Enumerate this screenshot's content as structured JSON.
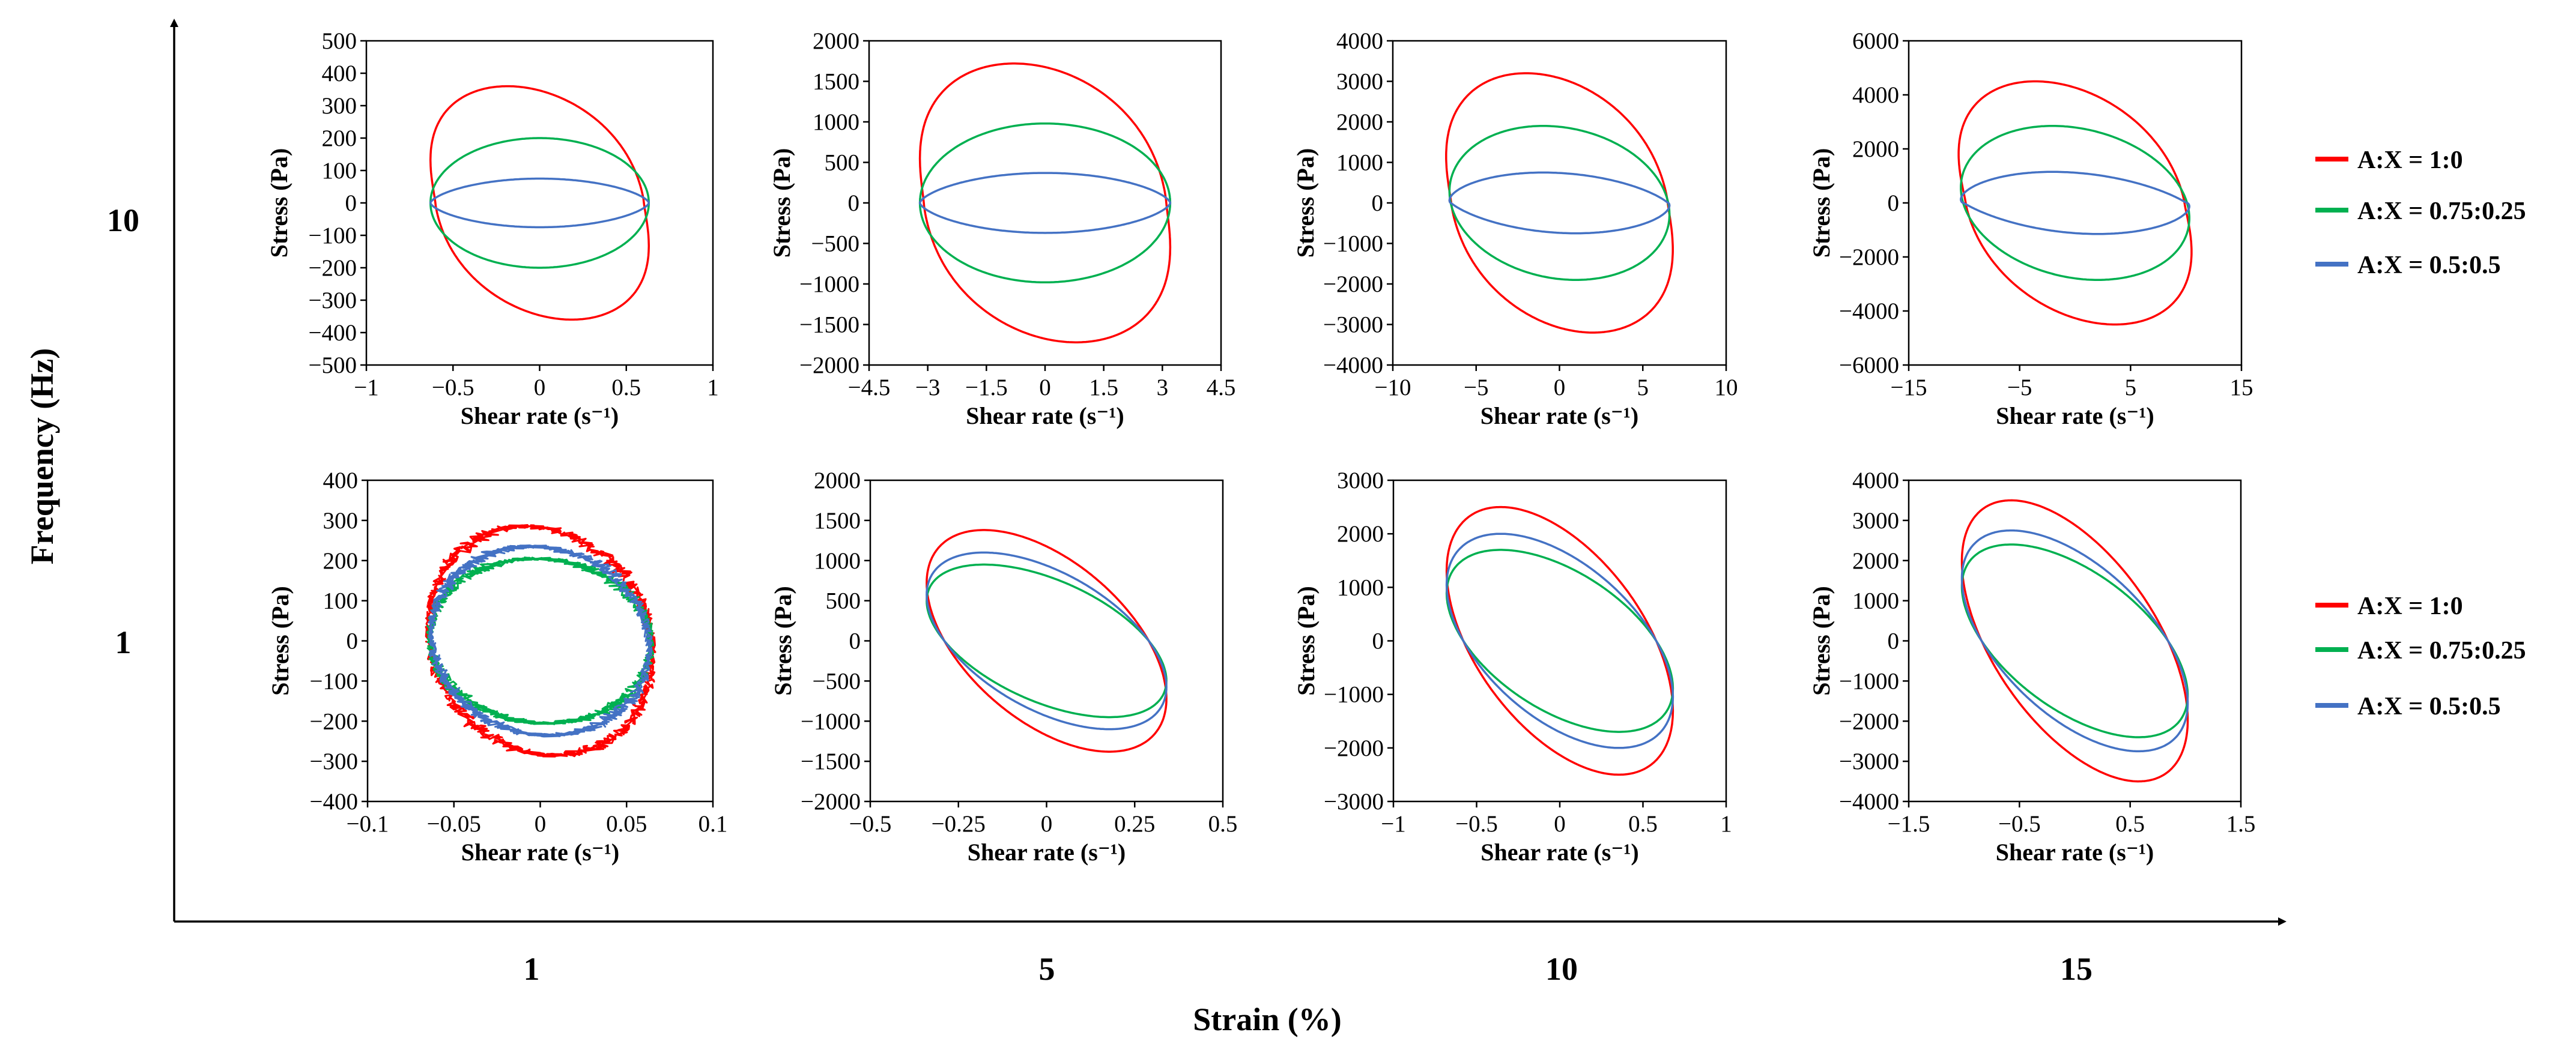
{
  "figure": {
    "x_axis_label": "Strain (%)",
    "y_axis_label": "Frequency (Hz)",
    "strain_levels": [
      "1",
      "5",
      "10",
      "15"
    ],
    "frequency_levels": [
      "10",
      "1"
    ]
  },
  "legend": [
    {
      "label": "A:X = 1:0",
      "color": "#ff0000"
    },
    {
      "label": "A:X = 0.75:0.25",
      "color": "#00b050"
    },
    {
      "label": "A:X = 0.5:0.5",
      "color": "#4472c4"
    }
  ],
  "chart_data": [
    {
      "type": "line",
      "frequency": "10",
      "strain": "1",
      "xlabel": "Shear rate (s⁻¹)",
      "ylabel": "Stress (Pa)",
      "xlim": [
        -1,
        1
      ],
      "ylim": [
        -500,
        500
      ],
      "xticks": [
        "−1",
        "−0.5",
        "0",
        "0.5",
        "1"
      ],
      "yticks": [
        "500",
        "400",
        "300",
        "200",
        "100",
        "0",
        "−100",
        "−200",
        "−300",
        "−400",
        "−500"
      ],
      "series": [
        {
          "name": "A:X = 1:0",
          "amplitude_x": 0.63,
          "amplitude_y": 360,
          "phase_shift": 0.3,
          "shape": 0.18
        },
        {
          "name": "A:X = 0.75:0.25",
          "amplitude_x": 0.63,
          "amplitude_y": 200,
          "phase_shift": 0,
          "shape": 0
        },
        {
          "name": "A:X = 0.5:0.5",
          "amplitude_x": 0.63,
          "amplitude_y": 75,
          "phase_shift": 0,
          "shape": -0.3
        }
      ]
    },
    {
      "type": "line",
      "frequency": "10",
      "strain": "5",
      "xlabel": "Shear rate (s⁻¹)",
      "ylabel": "Stress (Pa)",
      "xlim": [
        -4.5,
        4.5
      ],
      "ylim": [
        -2000,
        2000
      ],
      "xticks": [
        "−4.5",
        "−3",
        "−1.5",
        "0",
        "1.5",
        "3",
        "4.5"
      ],
      "yticks": [
        "2000",
        "1500",
        "1000",
        "500",
        "0",
        "−500",
        "−1000",
        "−1500",
        "−2000"
      ],
      "series": [
        {
          "name": "A:X = 1:0",
          "amplitude_x": 3.2,
          "amplitude_y": 1720,
          "phase_shift": 0.25,
          "shape": 0.18
        },
        {
          "name": "A:X = 0.75:0.25",
          "amplitude_x": 3.2,
          "amplitude_y": 980,
          "phase_shift": 0,
          "shape": 0
        },
        {
          "name": "A:X = 0.5:0.5",
          "amplitude_x": 3.2,
          "amplitude_y": 370,
          "phase_shift": 0,
          "shape": -0.3
        }
      ]
    },
    {
      "type": "line",
      "frequency": "10",
      "strain": "10",
      "xlabel": "Shear rate (s⁻¹)",
      "ylabel": "Stress (Pa)",
      "xlim": [
        -10,
        10
      ],
      "ylim": [
        -4000,
        4000
      ],
      "xticks": [
        "−10",
        "−5",
        "0",
        "5",
        "10"
      ],
      "yticks": [
        "4000",
        "3000",
        "2000",
        "1000",
        "0",
        "−1000",
        "−2000",
        "−3000",
        "−4000"
      ],
      "series": [
        {
          "name": "A:X = 1:0",
          "amplitude_x": 6.8,
          "amplitude_y": 3200,
          "phase_shift": 0.3,
          "shape": 0.16
        },
        {
          "name": "A:X = 0.75:0.25",
          "amplitude_x": 6.6,
          "amplitude_y": 1900,
          "phase_shift": 0.15,
          "shape": 0
        },
        {
          "name": "A:X = 0.5:0.5",
          "amplitude_x": 6.6,
          "amplitude_y": 750,
          "phase_shift": 0.15,
          "shape": -0.3
        }
      ]
    },
    {
      "type": "line",
      "frequency": "10",
      "strain": "15",
      "xlabel": "Shear rate (s⁻¹)",
      "ylabel": "Stress (Pa)",
      "xlim": [
        -15,
        15
      ],
      "ylim": [
        -6000,
        6000
      ],
      "xticks": [
        "−15",
        "−5",
        "5",
        "15"
      ],
      "yticks": [
        "6000",
        "4000",
        "2000",
        "0",
        "−2000",
        "−4000",
        "−6000"
      ],
      "series": [
        {
          "name": "A:X = 1:0",
          "amplitude_x": 10.5,
          "amplitude_y": 4500,
          "phase_shift": 0.35,
          "shape": 0.15
        },
        {
          "name": "A:X = 0.75:0.25",
          "amplitude_x": 10.3,
          "amplitude_y": 2850,
          "phase_shift": 0.2,
          "shape": 0
        },
        {
          "name": "A:X = 0.5:0.5",
          "amplitude_x": 10.3,
          "amplitude_y": 1150,
          "phase_shift": 0.2,
          "shape": -0.35
        }
      ]
    },
    {
      "type": "line",
      "frequency": "1",
      "strain": "1",
      "xlabel": "Shear rate (s⁻¹)",
      "ylabel": "Stress (Pa)",
      "xlim": [
        -0.1,
        0.1
      ],
      "ylim": [
        -400,
        400
      ],
      "xticks": [
        "−0.1",
        "−0.05",
        "0",
        "0.05",
        "0.1"
      ],
      "yticks": [
        "400",
        "300",
        "200",
        "100",
        "0",
        "−100",
        "−200",
        "−300",
        "−400"
      ],
      "series": [
        {
          "name": "A:X = 1:0",
          "amplitude_x": 0.065,
          "amplitude_y": 285,
          "phase_shift": 0.12,
          "shape": 0,
          "noisy": true
        },
        {
          "name": "A:X = 0.75:0.25",
          "amplitude_x": 0.064,
          "amplitude_y": 205,
          "phase_shift": 0.05,
          "shape": 0,
          "noisy": true
        },
        {
          "name": "A:X = 0.5:0.5",
          "amplitude_x": 0.063,
          "amplitude_y": 235,
          "phase_shift": 0.08,
          "shape": 0,
          "noisy": true
        }
      ]
    },
    {
      "type": "line",
      "frequency": "1",
      "strain": "5",
      "xlabel": "Shear rate (s⁻¹)",
      "ylabel": "Stress (Pa)",
      "xlim": [
        -0.5,
        0.5
      ],
      "ylim": [
        -2000,
        2000
      ],
      "xticks": [
        "−0.5",
        "−0.25",
        "0",
        "0.25",
        "0.5"
      ],
      "yticks": [
        "2000",
        "1500",
        "1000",
        "500",
        "0",
        "−500",
        "−1000",
        "−1500",
        "−2000"
      ],
      "series": [
        {
          "name": "A:X = 1:0",
          "amplitude_x": 0.34,
          "amplitude_y": 1380,
          "phase_shift": 0.55,
          "shape": 0
        },
        {
          "name": "A:X = 0.75:0.25",
          "amplitude_x": 0.34,
          "amplitude_y": 950,
          "phase_shift": 0.55,
          "shape": 0
        },
        {
          "name": "A:X = 0.5:0.5",
          "amplitude_x": 0.34,
          "amplitude_y": 1100,
          "phase_shift": 0.55,
          "shape": 0
        }
      ]
    },
    {
      "type": "line",
      "frequency": "1",
      "strain": "10",
      "xlabel": "Shear rate (s⁻¹)",
      "ylabel": "Stress (Pa)",
      "xlim": [
        -1,
        1
      ],
      "ylim": [
        -3000,
        3000
      ],
      "xticks": [
        "−1",
        "−0.5",
        "0",
        "0.5",
        "1"
      ],
      "yticks": [
        "3000",
        "2000",
        "1000",
        "0",
        "−1000",
        "−2000",
        "−3000"
      ],
      "series": [
        {
          "name": "A:X = 1:0",
          "amplitude_x": 0.68,
          "amplitude_y": 2500,
          "phase_shift": 0.55,
          "shape": 0
        },
        {
          "name": "A:X = 0.75:0.25",
          "amplitude_x": 0.68,
          "amplitude_y": 1700,
          "phase_shift": 0.55,
          "shape": 0
        },
        {
          "name": "A:X = 0.5:0.5",
          "amplitude_x": 0.68,
          "amplitude_y": 2000,
          "phase_shift": 0.55,
          "shape": 0
        }
      ]
    },
    {
      "type": "line",
      "frequency": "1",
      "strain": "15",
      "xlabel": "Shear rate (s⁻¹)",
      "ylabel": "Stress (Pa)",
      "xlim": [
        -1.5,
        1.5
      ],
      "ylim": [
        -4000,
        4000
      ],
      "xticks": [
        "−1.5",
        "−0.5",
        "0.5",
        "1.5"
      ],
      "yticks": [
        "4000",
        "3000",
        "2000",
        "1000",
        "0",
        "−1000",
        "−2000",
        "−3000",
        "−4000"
      ],
      "series": [
        {
          "name": "A:X = 1:0",
          "amplitude_x": 1.02,
          "amplitude_y": 3500,
          "phase_shift": 0.6,
          "shape": 0
        },
        {
          "name": "A:X = 0.75:0.25",
          "amplitude_x": 1.02,
          "amplitude_y": 2400,
          "phase_shift": 0.6,
          "shape": 0
        },
        {
          "name": "A:X = 0.5:0.5",
          "amplitude_x": 1.02,
          "amplitude_y": 2750,
          "phase_shift": 0.6,
          "shape": 0
        }
      ]
    }
  ]
}
